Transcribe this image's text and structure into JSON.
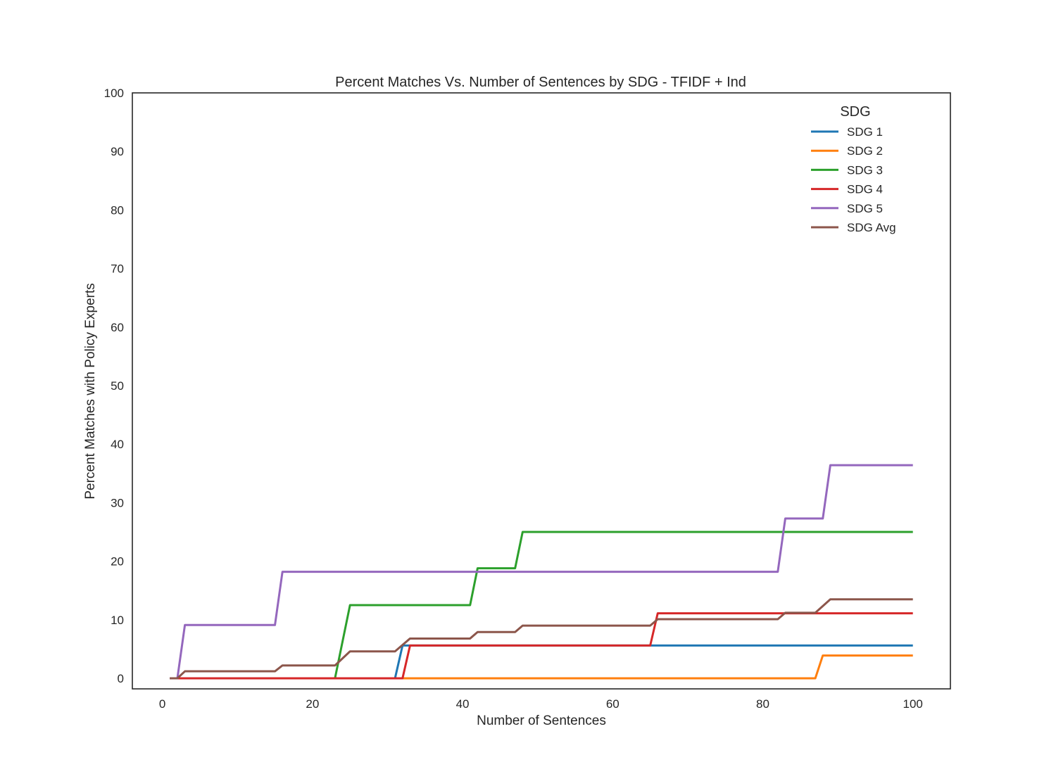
{
  "chart_data": {
    "type": "line",
    "title": "Percent Matches Vs. Number of Sentences by SDG - TFIDF + Ind",
    "xlabel": "Number of Sentences",
    "ylabel": "Percent Matches with Policy Experts",
    "xlim": [
      -4,
      105
    ],
    "ylim": [
      -1.8,
      100
    ],
    "xticks": [
      0,
      20,
      40,
      60,
      80,
      100
    ],
    "yticks": [
      0,
      10,
      20,
      30,
      40,
      50,
      60,
      70,
      80,
      90,
      100
    ],
    "xtick_labels": [
      "0",
      "20",
      "40",
      "60",
      "80",
      "100"
    ],
    "ytick_labels": [
      "0",
      "10",
      "20",
      "30",
      "40",
      "50",
      "60",
      "70",
      "80",
      "90",
      "100"
    ],
    "grid": false,
    "legend": {
      "title": "SDG",
      "placement": "top-right"
    },
    "series": [
      {
        "name": "SDG 1",
        "color": "#1f77b4",
        "points": [
          [
            1,
            0
          ],
          [
            31,
            0
          ],
          [
            32,
            5.6
          ],
          [
            100,
            5.6
          ]
        ]
      },
      {
        "name": "SDG 2",
        "color": "#ff7f0e",
        "points": [
          [
            1,
            0
          ],
          [
            87,
            0
          ],
          [
            88,
            3.9
          ],
          [
            100,
            3.9
          ]
        ]
      },
      {
        "name": "SDG 3",
        "color": "#2ca02c",
        "points": [
          [
            1,
            0
          ],
          [
            23,
            0
          ],
          [
            25,
            12.5
          ],
          [
            41,
            12.5
          ],
          [
            42,
            18.8
          ],
          [
            47,
            18.8
          ],
          [
            48,
            25.0
          ],
          [
            100,
            25.0
          ]
        ]
      },
      {
        "name": "SDG 4",
        "color": "#d62728",
        "points": [
          [
            1,
            0
          ],
          [
            32,
            0
          ],
          [
            33,
            5.6
          ],
          [
            65,
            5.6
          ],
          [
            66,
            11.1
          ],
          [
            100,
            11.1
          ]
        ]
      },
      {
        "name": "SDG 5",
        "color": "#9467bd",
        "points": [
          [
            1,
            0
          ],
          [
            2,
            0
          ],
          [
            3,
            9.1
          ],
          [
            15,
            9.1
          ],
          [
            16,
            18.2
          ],
          [
            82,
            18.2
          ],
          [
            83,
            27.3
          ],
          [
            88,
            27.3
          ],
          [
            89,
            36.4
          ],
          [
            100,
            36.4
          ]
        ]
      },
      {
        "name": "SDG Avg",
        "color": "#8c564b",
        "points": [
          [
            1,
            0
          ],
          [
            2,
            0
          ],
          [
            3,
            1.2
          ],
          [
            15,
            1.2
          ],
          [
            16,
            2.2
          ],
          [
            23,
            2.2
          ],
          [
            25,
            4.6
          ],
          [
            31,
            4.6
          ],
          [
            33,
            6.8
          ],
          [
            41,
            6.8
          ],
          [
            42,
            7.9
          ],
          [
            47,
            7.9
          ],
          [
            48,
            9.0
          ],
          [
            65,
            9.0
          ],
          [
            66,
            10.1
          ],
          [
            82,
            10.1
          ],
          [
            83,
            11.2
          ],
          [
            87,
            11.2
          ],
          [
            89,
            13.5
          ],
          [
            100,
            13.5
          ]
        ]
      }
    ]
  }
}
